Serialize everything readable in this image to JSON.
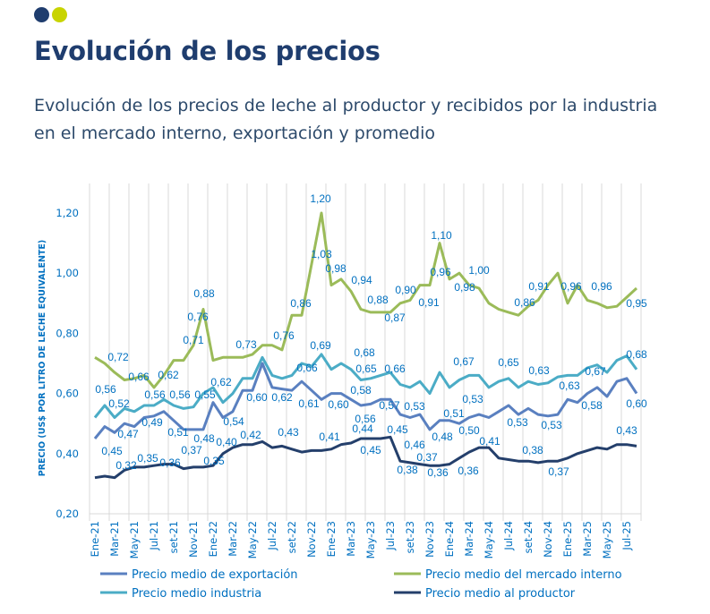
{
  "header": {
    "title": "Evolución de los precios",
    "subtitle": "Evolución de los precios de leche al productor y recibidos por la industria en el mercado interno, exportación y promedio",
    "dots": [
      "#1f3d6e",
      "#c8d400"
    ]
  },
  "chart_data": {
    "type": "line",
    "title": "",
    "xlabel": "",
    "ylabel": "PRECIO (US$ POR LITRO DE LECHE EQUIVALENTE)",
    "ylim": [
      0.2,
      1.2
    ],
    "yticks": [
      "0,20",
      "0,40",
      "0,60",
      "0,80",
      "1,00",
      "1,20"
    ],
    "ytick_values": [
      0.2,
      0.4,
      0.6,
      0.8,
      1.0,
      1.2
    ],
    "grid": "vertical",
    "legend_position": "bottom",
    "x": [
      "Ene-21",
      "Feb-21",
      "Mar-21",
      "Abr-21",
      "May-21",
      "Jun-21",
      "Jul-21",
      "Ago-21",
      "set-21",
      "Oct-21",
      "Nov-21",
      "Dic-21",
      "Ene-22",
      "Feb-22",
      "Mar-22",
      "Abr-22",
      "May-22",
      "Jun-22",
      "Jul-22",
      "Ago-22",
      "set-22",
      "Oct-22",
      "Nov-22",
      "Dic-22",
      "Ene-23",
      "Feb-23",
      "Mar-23",
      "Abr-23",
      "May-23",
      "Jun-23",
      "Jul-23",
      "Ago-23",
      "set-23",
      "Oct-23",
      "Nov-23",
      "Dic-23",
      "Ene-24",
      "Feb-24",
      "Mar-24",
      "Abr-24",
      "May-24",
      "Jun-24",
      "Jul-24",
      "Ago-24",
      "set-24",
      "Oct-24",
      "Nov-24",
      "Dic-24",
      "Ene-25",
      "Feb-25",
      "Mar-25",
      "Abr-25",
      "May-25",
      "Jun-25",
      "Jul-25",
      "Ago-25"
    ],
    "xtick_labels": [
      "Ene-21",
      "Mar-21",
      "May-21",
      "Jul-21",
      "set-21",
      "Nov-21",
      "Ene-22",
      "Mar-22",
      "May-22",
      "Jul-22",
      "set-22",
      "Nov-22",
      "Ene-23",
      "Mar-23",
      "May-23",
      "Jul-23",
      "set-23",
      "Nov-23",
      "Ene-24",
      "Mar-24",
      "May-24",
      "Jul-24",
      "set-24",
      "Nov-24",
      "Ene-25",
      "Mar-25",
      "May-25",
      "Jul-25"
    ],
    "series": [
      {
        "name": "Precio medio de exportación",
        "color": "#5a80c0",
        "values": [
          0.45,
          0.49,
          0.47,
          0.5,
          0.49,
          0.52,
          0.525,
          0.54,
          0.51,
          0.48,
          0.48,
          0.48,
          0.57,
          0.52,
          0.54,
          0.61,
          0.61,
          0.7,
          0.62,
          0.615,
          0.61,
          0.64,
          0.61,
          0.58,
          0.6,
          0.6,
          0.58,
          0.56,
          0.565,
          0.58,
          0.58,
          0.53,
          0.52,
          0.53,
          0.48,
          0.51,
          0.51,
          0.5,
          0.52,
          0.53,
          0.52,
          0.54,
          0.56,
          0.53,
          0.55,
          0.53,
          0.525,
          0.53,
          0.58,
          0.57,
          0.6,
          0.62,
          0.59,
          0.64,
          0.65,
          0.6
        ]
      },
      {
        "name": "Precio medio del mercado interno",
        "color": "#9bbb59",
        "values": [
          0.72,
          0.7,
          0.67,
          0.645,
          0.65,
          0.66,
          0.62,
          0.66,
          0.71,
          0.71,
          0.76,
          0.88,
          0.71,
          0.72,
          0.72,
          0.72,
          0.73,
          0.76,
          0.76,
          0.745,
          0.86,
          0.86,
          1.03,
          1.2,
          0.96,
          0.98,
          0.94,
          0.88,
          0.87,
          0.87,
          0.87,
          0.9,
          0.91,
          0.96,
          0.96,
          1.1,
          0.98,
          1.0,
          0.96,
          0.95,
          0.9,
          0.88,
          0.87,
          0.86,
          0.89,
          0.91,
          0.96,
          1.0,
          0.9,
          0.96,
          0.91,
          0.9,
          0.885,
          0.89,
          0.92,
          0.95
        ]
      },
      {
        "name": "Precio medio industria",
        "color": "#4bacc6",
        "values": [
          0.52,
          0.56,
          0.52,
          0.55,
          0.54,
          0.56,
          0.56,
          0.58,
          0.56,
          0.55,
          0.555,
          0.6,
          0.62,
          0.57,
          0.6,
          0.65,
          0.65,
          0.72,
          0.66,
          0.65,
          0.66,
          0.7,
          0.69,
          0.73,
          0.68,
          0.7,
          0.68,
          0.645,
          0.65,
          0.66,
          0.67,
          0.63,
          0.62,
          0.64,
          0.6,
          0.67,
          0.62,
          0.645,
          0.66,
          0.66,
          0.62,
          0.64,
          0.65,
          0.62,
          0.64,
          0.63,
          0.635,
          0.655,
          0.66,
          0.66,
          0.685,
          0.695,
          0.67,
          0.71,
          0.725,
          0.68
        ]
      },
      {
        "name": "Precio medio al productor",
        "color": "#243f6b",
        "values": [
          0.32,
          0.325,
          0.32,
          0.345,
          0.355,
          0.355,
          0.36,
          0.365,
          0.365,
          0.35,
          0.355,
          0.355,
          0.36,
          0.4,
          0.42,
          0.43,
          0.43,
          0.44,
          0.42,
          0.425,
          0.415,
          0.405,
          0.41,
          0.41,
          0.415,
          0.43,
          0.435,
          0.45,
          0.45,
          0.45,
          0.455,
          0.375,
          0.37,
          0.365,
          0.36,
          0.36,
          0.365,
          0.385,
          0.405,
          0.42,
          0.42,
          0.385,
          0.38,
          0.375,
          0.375,
          0.37,
          0.375,
          0.375,
          0.385,
          0.4,
          0.41,
          0.42,
          0.415,
          0.43,
          0.43,
          0.425
        ]
      }
    ],
    "data_labels": [
      "0,72",
      "0,66",
      "0,62",
      "0,71",
      "0,76",
      "0,88",
      "0,73",
      "0,76",
      "0,86",
      "0,56",
      "0,52",
      "0,56",
      "0,56",
      "0,55",
      "0,62",
      "0,47",
      "0,49",
      "0,45",
      "0,60",
      "0,62",
      "0,61",
      "0,51",
      "0,48",
      "0,54",
      "0,40",
      "0,42",
      "0,43",
      "0,32",
      "0,35",
      "0,36",
      "0,37",
      "0,35",
      "1,20",
      "1,03",
      "0,98",
      "0,94",
      "0,88",
      "0,87",
      "0,90",
      "0,91",
      "1,10",
      "0,96",
      "0,98",
      "1,00",
      "0,66",
      "0,69",
      "0,68",
      "0,65",
      "0,66",
      "0,67",
      "0,60",
      "0,58",
      "0,56",
      "0,57",
      "0,53",
      "0,51",
      "0,53",
      "0,41",
      "0,44",
      "0,45",
      "0,45",
      "0,46",
      "0,48",
      "0,37",
      "0,38",
      "0,36",
      "0,36",
      "0,50",
      "0,41",
      "0,86",
      "0,91",
      "0,96",
      "0,96",
      "0,95",
      "0,68",
      "0,65",
      "0,63",
      "0,63",
      "0,67",
      "0,53",
      "0,53",
      "0,58",
      "0,60",
      "0,38",
      "0,37",
      "0,43"
    ],
    "legend": [
      "Precio medio de exportación",
      "Precio medio del mercado interno",
      "Precio medio industria",
      "Precio medio al productor"
    ]
  }
}
